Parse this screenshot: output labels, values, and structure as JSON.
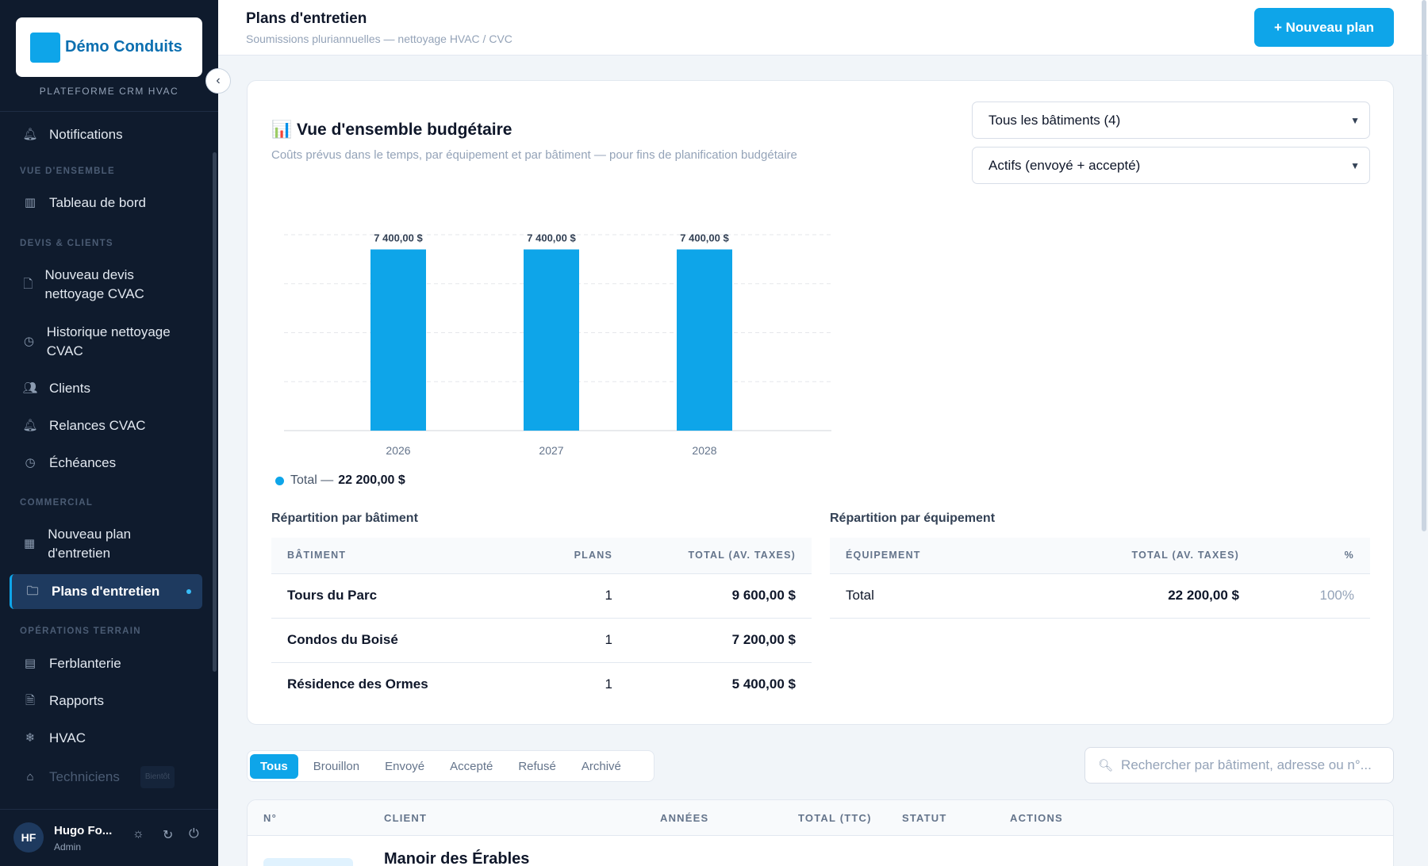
{
  "sidebar": {
    "brand": "Démo Conduits",
    "tagline": "PLATEFORME CRM HVAC",
    "items": {
      "notifications": "Notifications",
      "dashboard": "Tableau de bord",
      "new_quote": "Nouveau devis nettoyage CVAC",
      "history": "Historique nettoyage CVAC",
      "clients": "Clients",
      "reminders": "Relances CVAC",
      "deadlines": "Échéances",
      "new_plan": "Nouveau plan d'entretien",
      "plans": "Plans d'entretien",
      "sheet_metal": "Ferblanterie",
      "reports": "Rapports",
      "hvac": "HVAC",
      "technicians": "Techniciens",
      "technicians_badge": "Bientôt"
    },
    "sections": {
      "overview": "VUE D'ENSEMBLE",
      "quotes_clients": "DEVIS & CLIENTS",
      "commercial": "COMMERCIAL",
      "field_ops": "OPÉRATIONS TERRAIN"
    },
    "user": {
      "initials": "HF",
      "name": "Hugo Fo...",
      "role": "Admin"
    }
  },
  "header": {
    "title": "Plans d'entretien",
    "subtitle": "Soumissions pluriannuelles — nettoyage HVAC / CVC",
    "new_plan_button": "+ Nouveau plan"
  },
  "budget": {
    "title": "Vue d'ensemble budgétaire",
    "title_icon": "📊",
    "subtitle": "Coûts prévus dans le temps, par équipement et par bâtiment — pour fins de planification budgétaire",
    "building_filter": "Tous les bâtiments (4)",
    "status_filter": "Actifs (envoyé + accepté)",
    "legend_label": "Total —",
    "legend_total": "22 200,00 $"
  },
  "chart_data": {
    "type": "bar",
    "categories": [
      "2026",
      "2027",
      "2028"
    ],
    "values": [
      7400,
      7400,
      7400
    ],
    "data_labels": [
      "7 400,00 $",
      "7 400,00 $",
      "7 400,00 $"
    ],
    "series": [
      {
        "name": "Total",
        "values": [
          7400,
          7400,
          7400
        ]
      }
    ],
    "ylim": [
      0,
      8000
    ],
    "grid": true,
    "color": "#0ea5e9"
  },
  "by_building": {
    "title": "Répartition par bâtiment",
    "headers": {
      "building": "BÂTIMENT",
      "plans": "PLANS",
      "total": "TOTAL (AV. TAXES)"
    },
    "rows": [
      {
        "name": "Tours du Parc",
        "plans": "1",
        "total": "9 600,00 $"
      },
      {
        "name": "Condos du Boisé",
        "plans": "1",
        "total": "7 200,00 $"
      },
      {
        "name": "Résidence des Ormes",
        "plans": "1",
        "total": "5 400,00 $"
      }
    ]
  },
  "by_equipment": {
    "title": "Répartition par équipement",
    "headers": {
      "equipment": "ÉQUIPEMENT",
      "total": "TOTAL (AV. TAXES)",
      "pct": "%"
    },
    "rows": [
      {
        "name": "Total",
        "total": "22 200,00 $",
        "pct": "100%"
      }
    ]
  },
  "filters": {
    "tabs": [
      "Tous",
      "Brouillon",
      "Envoyé",
      "Accepté",
      "Refusé",
      "Archivé"
    ],
    "active": "Tous",
    "search_placeholder": "Rechercher par bâtiment, adresse ou n°..."
  },
  "list": {
    "headers": {
      "number": "N°",
      "client": "CLIENT",
      "years": "ANNÉES",
      "total": "TOTAL (TTC)",
      "status": "STATUT",
      "actions": "ACTIONS"
    },
    "rows": [
      {
        "client": "Manoir des Érables"
      }
    ]
  }
}
